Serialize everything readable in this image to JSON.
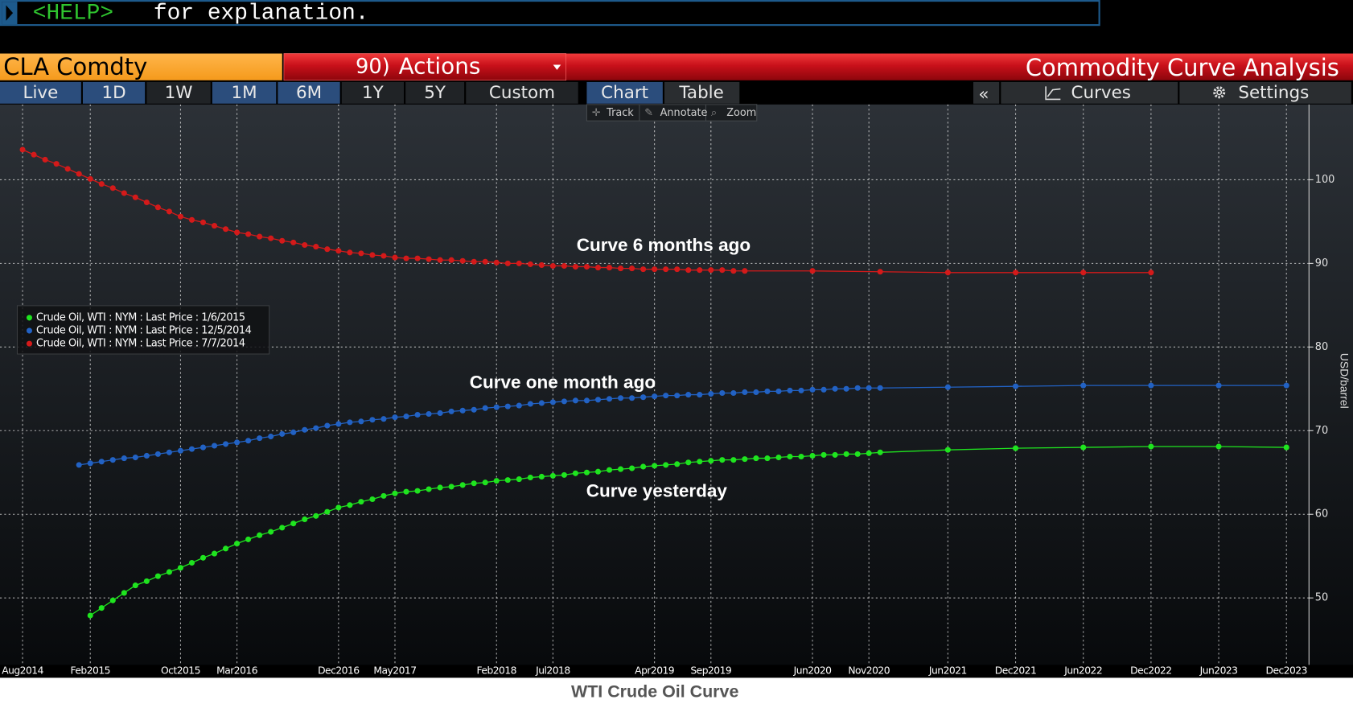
{
  "command_line": {
    "prompt": "<HELP>",
    "text": "for explanation."
  },
  "header": {
    "security": "CLA Comdty",
    "actions_number": "90)",
    "actions": "Actions",
    "function_title": "Commodity Curve Analysis"
  },
  "toolbar": {
    "ranges": [
      "Live",
      "1D",
      "1W",
      "1M",
      "6M",
      "1Y",
      "5Y",
      "Custom"
    ],
    "views": [
      "Chart",
      "Table"
    ],
    "collapse": "«",
    "curves": "Curves",
    "settings": "Settings",
    "tools": [
      "Track",
      "Annotate",
      "Zoom"
    ]
  },
  "chart_data": {
    "type": "line",
    "title": "WTI Crude Oil Curve",
    "y_label": "USD/barrel",
    "annotations": [
      "Curve 6 months ago",
      "Curve one month ago",
      "Curve yesterday"
    ],
    "xlim": [
      "2014-06",
      "2024-02"
    ],
    "xticks": [
      {
        "value": "2014-08",
        "label": "Aug2014"
      },
      {
        "value": "2015-02",
        "label": "Feb2015"
      },
      {
        "value": "2015-10",
        "label": "Oct2015"
      },
      {
        "value": "2016-03",
        "label": "Mar2016"
      },
      {
        "value": "2016-12",
        "label": "Dec2016"
      },
      {
        "value": "2017-05",
        "label": "May2017"
      },
      {
        "value": "2018-02",
        "label": "Feb2018"
      },
      {
        "value": "2018-07",
        "label": "Jul2018"
      },
      {
        "value": "2019-04",
        "label": "Apr2019"
      },
      {
        "value": "2019-09",
        "label": "Sep2019"
      },
      {
        "value": "2020-06",
        "label": "Jun2020"
      },
      {
        "value": "2020-11",
        "label": "Nov2020"
      },
      {
        "value": "2021-06",
        "label": "Jun2021"
      },
      {
        "value": "2021-12",
        "label": "Dec2021"
      },
      {
        "value": "2022-06",
        "label": "Jun2022"
      },
      {
        "value": "2022-12",
        "label": "Dec2022"
      },
      {
        "value": "2023-06",
        "label": "Jun2023"
      },
      {
        "value": "2023-12",
        "label": "Dec2023"
      }
    ],
    "ylim": [
      42,
      109
    ],
    "yticks": [
      50,
      60,
      70,
      80,
      90,
      100
    ],
    "grid": true,
    "legend": "left",
    "series": [
      {
        "name": "Crude Oil, WTI : NYM : Last Price : 1/6/2015",
        "color": "#1fe41f",
        "x": [
          "2015-02",
          "2015-03",
          "2015-04",
          "2015-05",
          "2015-06",
          "2015-07",
          "2015-08",
          "2015-09",
          "2015-10",
          "2015-11",
          "2015-12",
          "2016-01",
          "2016-02",
          "2016-03",
          "2016-04",
          "2016-05",
          "2016-06",
          "2016-07",
          "2016-08",
          "2016-09",
          "2016-10",
          "2016-11",
          "2016-12",
          "2017-01",
          "2017-02",
          "2017-03",
          "2017-04",
          "2017-05",
          "2017-06",
          "2017-07",
          "2017-08",
          "2017-09",
          "2017-10",
          "2017-11",
          "2017-12",
          "2018-01",
          "2018-02",
          "2018-03",
          "2018-04",
          "2018-05",
          "2018-06",
          "2018-07",
          "2018-08",
          "2018-09",
          "2018-10",
          "2018-11",
          "2018-12",
          "2019-01",
          "2019-02",
          "2019-03",
          "2019-04",
          "2019-05",
          "2019-06",
          "2019-07",
          "2019-08",
          "2019-09",
          "2019-10",
          "2019-11",
          "2019-12",
          "2020-01",
          "2020-02",
          "2020-03",
          "2020-04",
          "2020-05",
          "2020-06",
          "2020-07",
          "2020-08",
          "2020-09",
          "2020-10",
          "2020-11",
          "2020-12",
          "2021-06",
          "2021-12",
          "2022-06",
          "2022-12",
          "2023-06",
          "2023-12"
        ],
        "values": [
          47.9,
          48.8,
          49.7,
          50.6,
          51.5,
          52.0,
          52.6,
          53.1,
          53.6,
          54.2,
          54.8,
          55.3,
          55.9,
          56.5,
          57.0,
          57.5,
          57.9,
          58.4,
          58.9,
          59.4,
          59.8,
          60.3,
          60.8,
          61.1,
          61.5,
          61.8,
          62.2,
          62.5,
          62.7,
          62.8,
          63.0,
          63.2,
          63.3,
          63.5,
          63.7,
          63.8,
          64.0,
          64.1,
          64.2,
          64.4,
          64.5,
          64.6,
          64.7,
          64.9,
          65.0,
          65.1,
          65.3,
          65.4,
          65.5,
          65.7,
          65.8,
          65.9,
          66.0,
          66.2,
          66.3,
          66.4,
          66.5,
          66.5,
          66.6,
          66.7,
          66.7,
          66.8,
          66.9,
          66.9,
          67.0,
          67.1,
          67.1,
          67.2,
          67.2,
          67.3,
          67.4,
          67.7,
          67.9,
          68.0,
          68.1,
          68.1,
          68.0
        ]
      },
      {
        "name": "Crude Oil, WTI : NYM : Last Price : 12/5/2014",
        "color": "#2262c4",
        "x": [
          "2015-01",
          "2015-02",
          "2015-03",
          "2015-04",
          "2015-05",
          "2015-06",
          "2015-07",
          "2015-08",
          "2015-09",
          "2015-10",
          "2015-11",
          "2015-12",
          "2016-01",
          "2016-02",
          "2016-03",
          "2016-04",
          "2016-05",
          "2016-06",
          "2016-07",
          "2016-08",
          "2016-09",
          "2016-10",
          "2016-11",
          "2016-12",
          "2017-01",
          "2017-02",
          "2017-03",
          "2017-04",
          "2017-05",
          "2017-06",
          "2017-07",
          "2017-08",
          "2017-09",
          "2017-10",
          "2017-11",
          "2017-12",
          "2018-01",
          "2018-02",
          "2018-03",
          "2018-04",
          "2018-05",
          "2018-06",
          "2018-07",
          "2018-08",
          "2018-09",
          "2018-10",
          "2018-11",
          "2018-12",
          "2019-01",
          "2019-02",
          "2019-03",
          "2019-04",
          "2019-05",
          "2019-06",
          "2019-07",
          "2019-08",
          "2019-09",
          "2019-10",
          "2019-11",
          "2019-12",
          "2020-01",
          "2020-02",
          "2020-03",
          "2020-04",
          "2020-05",
          "2020-06",
          "2020-07",
          "2020-08",
          "2020-09",
          "2020-10",
          "2020-11",
          "2020-12",
          "2021-06",
          "2021-12",
          "2022-06",
          "2022-12",
          "2023-06",
          "2023-12"
        ],
        "values": [
          65.9,
          66.1,
          66.3,
          66.5,
          66.7,
          66.8,
          67.0,
          67.2,
          67.4,
          67.6,
          67.8,
          68.0,
          68.2,
          68.4,
          68.6,
          68.8,
          69.1,
          69.3,
          69.6,
          69.8,
          70.1,
          70.3,
          70.6,
          70.8,
          71.0,
          71.1,
          71.3,
          71.4,
          71.6,
          71.7,
          71.9,
          72.0,
          72.1,
          72.3,
          72.4,
          72.5,
          72.7,
          72.8,
          72.9,
          73.0,
          73.2,
          73.3,
          73.4,
          73.5,
          73.6,
          73.6,
          73.7,
          73.8,
          73.9,
          73.9,
          74.0,
          74.1,
          74.2,
          74.2,
          74.3,
          74.3,
          74.4,
          74.5,
          74.5,
          74.6,
          74.6,
          74.7,
          74.7,
          74.8,
          74.8,
          74.9,
          74.9,
          75.0,
          75.0,
          75.1,
          75.1,
          75.1,
          75.2,
          75.3,
          75.4,
          75.4,
          75.4,
          75.4
        ]
      },
      {
        "name": "Crude Oil, WTI : NYM : Last Price : 7/7/2014",
        "color": "#d41a1a",
        "x": [
          "2014-08",
          "2014-09",
          "2014-10",
          "2014-11",
          "2014-12",
          "2015-01",
          "2015-02",
          "2015-03",
          "2015-04",
          "2015-05",
          "2015-06",
          "2015-07",
          "2015-08",
          "2015-09",
          "2015-10",
          "2015-11",
          "2015-12",
          "2016-01",
          "2016-02",
          "2016-03",
          "2016-04",
          "2016-05",
          "2016-06",
          "2016-07",
          "2016-08",
          "2016-09",
          "2016-10",
          "2016-11",
          "2016-12",
          "2017-01",
          "2017-02",
          "2017-03",
          "2017-04",
          "2017-05",
          "2017-06",
          "2017-07",
          "2017-08",
          "2017-09",
          "2017-10",
          "2017-11",
          "2017-12",
          "2018-01",
          "2018-02",
          "2018-03",
          "2018-04",
          "2018-05",
          "2018-06",
          "2018-07",
          "2018-08",
          "2018-09",
          "2018-10",
          "2018-11",
          "2018-12",
          "2019-01",
          "2019-02",
          "2019-03",
          "2019-04",
          "2019-05",
          "2019-06",
          "2019-07",
          "2019-08",
          "2019-09",
          "2019-10",
          "2019-11",
          "2019-12",
          "2020-06",
          "2020-12",
          "2021-06",
          "2021-12",
          "2022-06",
          "2022-12"
        ],
        "values": [
          103.6,
          103.0,
          102.4,
          101.9,
          101.3,
          100.7,
          100.1,
          99.5,
          99.0,
          98.4,
          97.9,
          97.3,
          96.7,
          96.2,
          95.6,
          95.2,
          94.9,
          94.5,
          94.1,
          93.7,
          93.5,
          93.2,
          93.0,
          92.7,
          92.5,
          92.2,
          92.0,
          91.7,
          91.5,
          91.3,
          91.2,
          91.0,
          90.9,
          90.7,
          90.6,
          90.6,
          90.5,
          90.4,
          90.4,
          90.3,
          90.2,
          90.2,
          90.1,
          90.0,
          90.0,
          89.9,
          89.8,
          89.7,
          89.7,
          89.6,
          89.6,
          89.5,
          89.5,
          89.4,
          89.4,
          89.3,
          89.3,
          89.3,
          89.3,
          89.2,
          89.2,
          89.2,
          89.2,
          89.1,
          89.1,
          89.1,
          89.0,
          88.9,
          88.9,
          88.9,
          88.9
        ]
      }
    ]
  }
}
